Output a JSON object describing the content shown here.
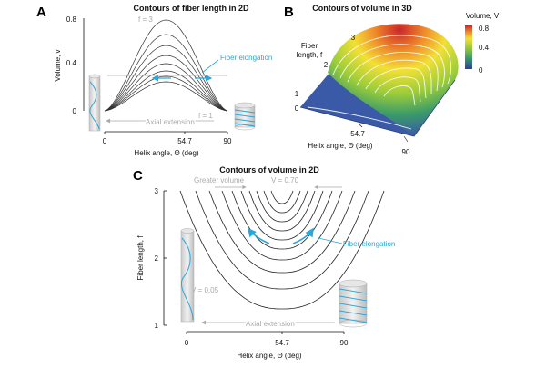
{
  "panels": {
    "A": {
      "letter": "A",
      "title": "Contours of fiber length in 2D",
      "ylabel": "Volume, v",
      "xlabel": "Helix angle, Θ (deg)",
      "x_ticks": [
        "0",
        "54.7",
        "90"
      ],
      "y_ticks": [
        "0",
        "0.4",
        "0.8"
      ],
      "label_f3": "f = 3",
      "label_f1": "f = 1",
      "fiber_elongation": "Fiber elongation",
      "axial_extension": "Axial extension"
    },
    "B": {
      "letter": "B",
      "title": "Contours of volume in 3D",
      "fiber_length_label_1": "Fiber",
      "fiber_length_label_2": "length, f",
      "xlabel": "Helix angle, Θ (deg)",
      "f_ticks": [
        "1",
        "2",
        "3"
      ],
      "x_ticks": [
        "0",
        "54.7",
        "90"
      ],
      "colorbar_title": "Volume, V",
      "colorbar_ticks": [
        "0.8",
        "0.4",
        "0"
      ]
    },
    "C": {
      "letter": "C",
      "title": "Contours of volume in 2D",
      "ylabel": "Fiber length, f",
      "xlabel": "Helix angle, Θ (deg)",
      "x_ticks": [
        "0",
        "54.7",
        "90"
      ],
      "y_ticks": [
        "3",
        "2",
        "1"
      ],
      "greater_volume": "Greater volume",
      "label_v070": "V = 0.70",
      "label_v005": "V = 0.05",
      "fiber_elongation": "Fiber elongation",
      "axial_extension": "Axial extension"
    }
  },
  "colors": {
    "accent_blue": "#2aa6d8",
    "annotation_gray": "#aaaaaa",
    "surface_blue": "#3a5aa8"
  }
}
